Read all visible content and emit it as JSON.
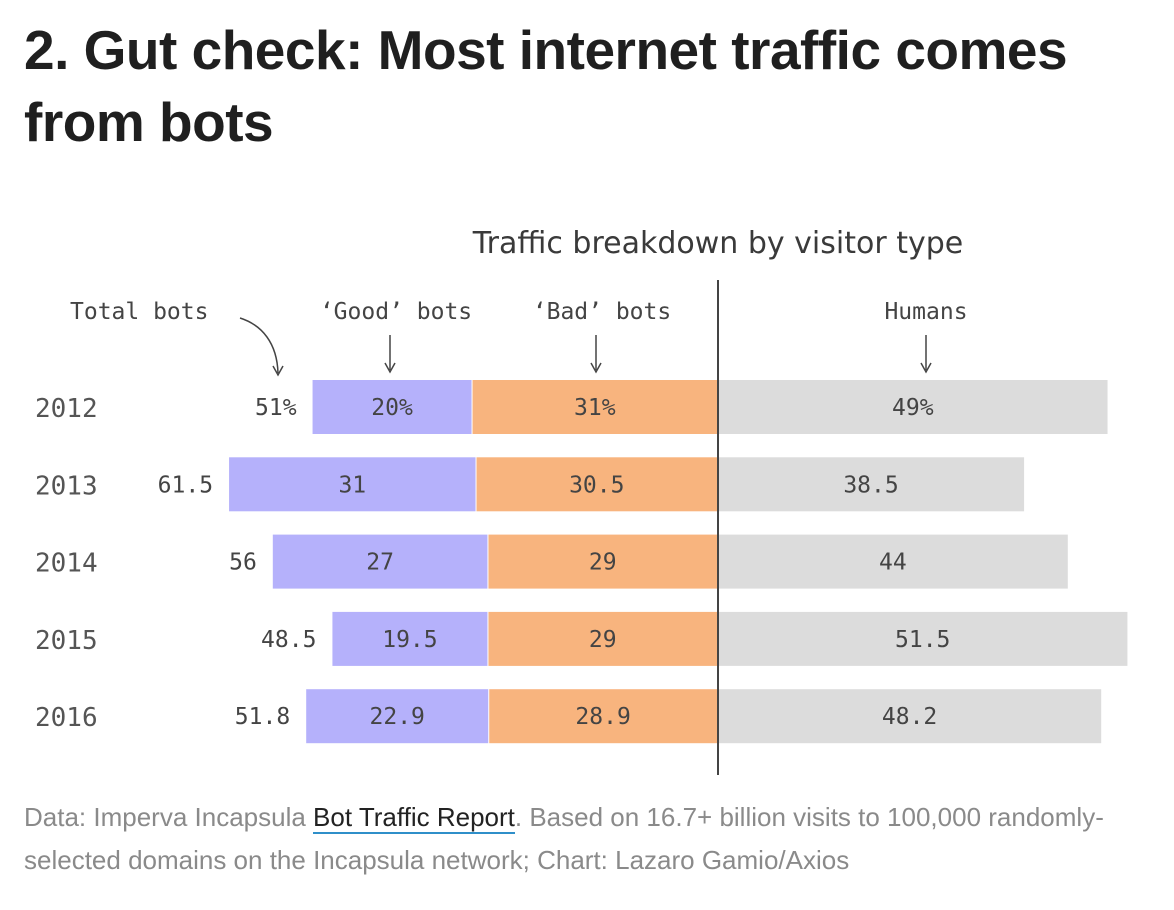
{
  "title": "2. Gut check: Most internet traffic comes from bots",
  "colors": {
    "good_bots": "#b5b1fb",
    "bad_bots": "#f8b47e",
    "humans": "#dcdcdc",
    "divider": "#444444"
  },
  "chart_data": {
    "type": "bar",
    "stacked": true,
    "title": "Traffic breakdown by visitor type",
    "categories": [
      "2012",
      "2013",
      "2014",
      "2015",
      "2016"
    ],
    "column_headers": {
      "total_bots": "Total bots",
      "good_bots": "‘Good’ bots",
      "bad_bots": "‘Bad’ bots",
      "humans": "Humans"
    },
    "series": [
      {
        "name": "‘Good’ bots",
        "values": [
          20,
          31,
          27,
          19.5,
          22.9
        ],
        "labels": [
          "20%",
          "31",
          "27",
          "19.5",
          "22.9"
        ]
      },
      {
        "name": "‘Bad’ bots",
        "values": [
          31,
          30.5,
          29,
          29,
          28.9
        ],
        "labels": [
          "31%",
          "30.5",
          "29",
          "29",
          "28.9"
        ]
      },
      {
        "name": "Humans",
        "values": [
          49,
          38.5,
          44,
          51.5,
          48.2
        ],
        "labels": [
          "49%",
          "38.5",
          "44",
          "51.5",
          "48.2"
        ]
      }
    ],
    "total_bots": {
      "values": [
        51,
        61.5,
        56,
        48.5,
        51.8
      ],
      "labels": [
        "51%",
        "61.5",
        "56",
        "48.5",
        "51.8"
      ]
    },
    "grid": false
  },
  "source": {
    "prefix": "Data: Imperva Incapsula ",
    "link_text": "Bot Traffic Report",
    "suffix": ". Based on 16.7+ billion visits to 100,000 randomly-selected domains on the Incapsula network; Chart: Lazaro Gamio/Axios"
  }
}
